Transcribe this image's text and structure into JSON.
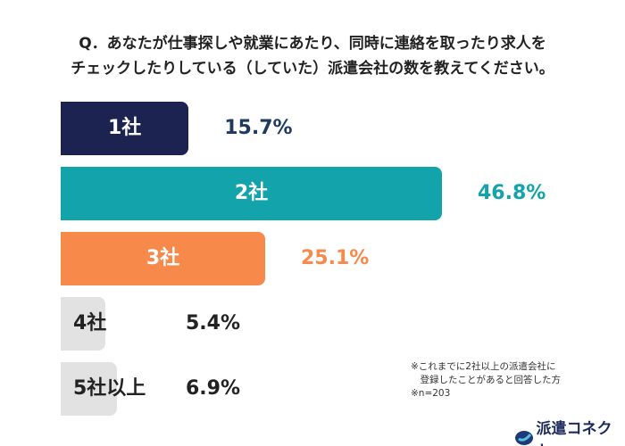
{
  "chart_data": {
    "type": "bar",
    "orientation": "horizontal",
    "title_lines": [
      "Q．あなたが仕事探しや就業にあたり、同時に連絡を取ったり求人を",
      "チェックしたりしている（していた）派遣会社の数を教えてください。"
    ],
    "categories": [
      "1社",
      "2社",
      "3社",
      "4社",
      "5社以上"
    ],
    "values": [
      15.7,
      46.8,
      25.1,
      5.4,
      6.9
    ],
    "value_labels": [
      "15.7%",
      "46.8%",
      "25.1%",
      "5.4%",
      "6.9%"
    ],
    "bar_colors": [
      "#1d2350",
      "#12a3ab",
      "#f7894a",
      "#e2e2e2",
      "#e2e2e2"
    ],
    "label_colors": [
      "#ffffff",
      "#ffffff",
      "#ffffff",
      "#222222",
      "#222222"
    ],
    "value_colors": [
      "#1f3a5f",
      "#12a3ab",
      "#f7894a",
      "#222222",
      "#222222"
    ],
    "notes": [
      "※これまでに2社以上の派遣会社に",
      "　登録したことがあると回答した方",
      "※n=203"
    ]
  },
  "logo": {
    "text": "派遣コネクト"
  }
}
